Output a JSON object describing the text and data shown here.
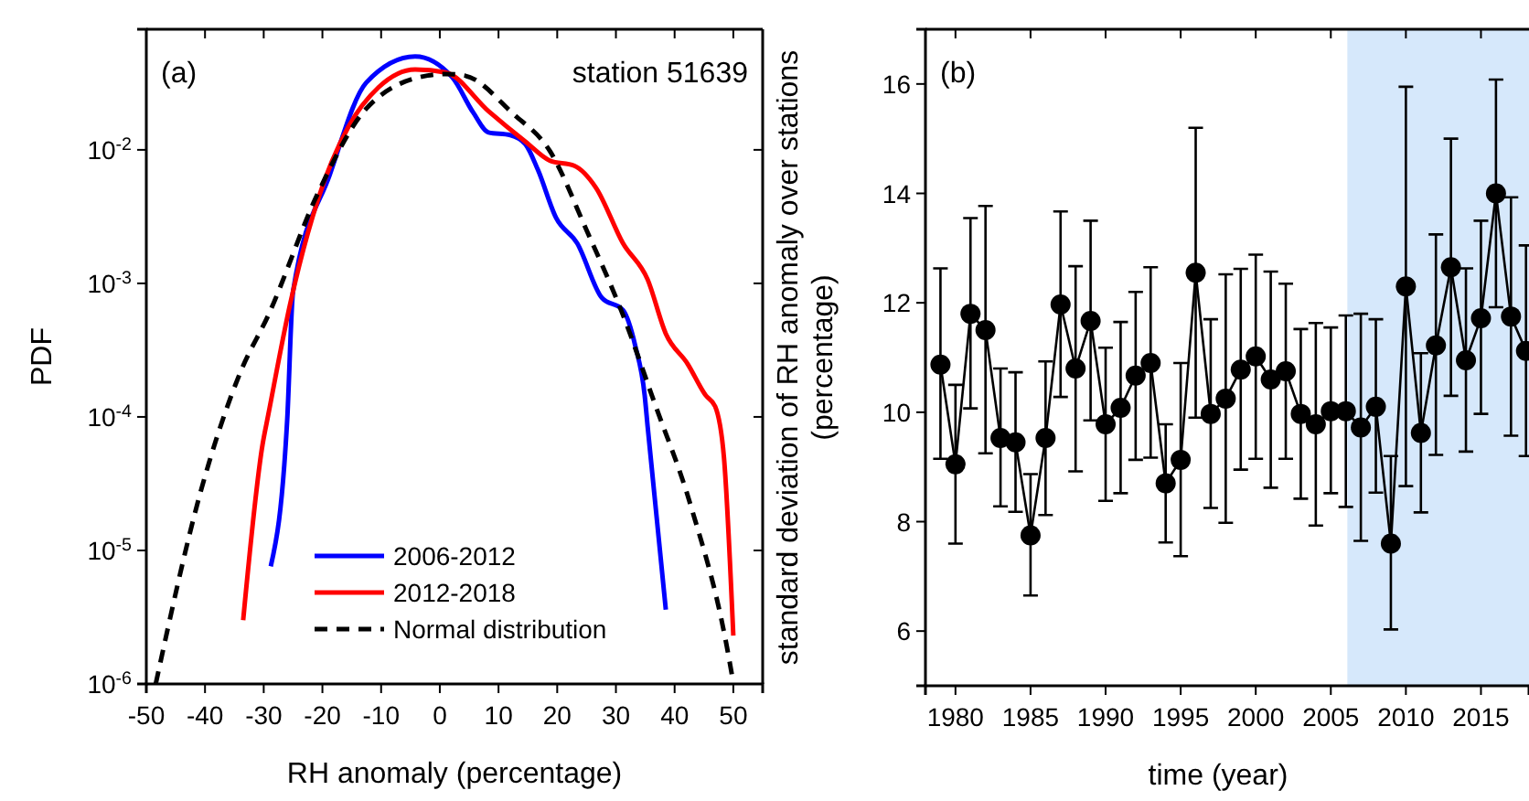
{
  "chart_data": [
    {
      "type": "line",
      "xlabel": "RH anomaly (percentage)",
      "ylabel": "PDF",
      "log": "y",
      "xlim": [
        -50,
        55
      ],
      "xticks": [
        -50,
        -40,
        -30,
        -20,
        -10,
        0,
        10,
        20,
        30,
        40,
        50
      ],
      "ylim": [
        1e-06,
        0.08
      ],
      "yticks": [
        {
          "value": 1e-06,
          "label": "10$^{-6}$"
        },
        {
          "value": 1e-05,
          "label": "10$^{-5}$"
        },
        {
          "value": 0.0001,
          "label": "10$^{-4}$"
        },
        {
          "value": 0.001,
          "label": "10$^{-3}$"
        },
        {
          "value": 0.01,
          "label": "10$^{-2}$"
        }
      ],
      "legend": "bottom",
      "annotations": [
        "(a)",
        "station 51639"
      ],
      "series": [
        {
          "name": "2006-2012",
          "color": "#0000ff",
          "line_style": "solid",
          "x": [
            -28.8,
            -26,
            -25,
            -18.75,
            -12.5,
            -4.2,
            2.1,
            5.7,
            8.3,
            12,
            14.6,
            16.7,
            19.8,
            23.4,
            27.6,
            31.2,
            33.3,
            34.9,
            35.4,
            38.5
          ],
          "values": [
            7.6e-06,
            9.5e-05,
            0.00087,
            0.0065,
            0.032,
            0.05,
            0.035,
            0.019,
            0.0135,
            0.0129,
            0.011,
            0.0071,
            0.0031,
            0.002,
            0.00078,
            0.00063,
            0.00034,
            0.000145,
            8.5e-05,
            3.6e-06
          ]
        },
        {
          "name": "2012-2018",
          "color": "#ff0000",
          "line_style": "solid",
          "x": [
            -33.5,
            -30.2,
            -29.2,
            -25.5,
            -20.8,
            -15.6,
            -10.4,
            -4.2,
            1,
            8.3,
            14.6,
            18.75,
            22.9,
            26.6,
            31.2,
            35.4,
            38.5,
            42.2,
            45.3,
            46.9,
            48.4,
            50
          ],
          "values": [
            3e-06,
            6.2e-05,
            0.000105,
            0.0007,
            0.0042,
            0.0148,
            0.0295,
            0.04,
            0.038,
            0.0195,
            0.0115,
            0.0083,
            0.0076,
            0.0052,
            0.002,
            0.00107,
            0.00042,
            0.00025,
            0.000145,
            0.00012,
            5e-05,
            2.3e-06
          ]
        },
        {
          "name": "Normal distribution",
          "color": "#000000",
          "line_style": "dashed",
          "x": [
            -48.4,
            -40.6,
            -33.9,
            -29.2,
            -20.8,
            -12.5,
            -2.1,
            1,
            4.2,
            12.5,
            18.75,
            25,
            31.2,
            36.5,
            42.7,
            48.9,
            50
          ],
          "values": [
            1e-06,
            2.9e-05,
            0.00022,
            0.00058,
            0.0047,
            0.0204,
            0.036,
            0.037,
            0.036,
            0.0186,
            0.0098,
            0.0025,
            0.00058,
            0.00013,
            2.2e-05,
            1.9e-06,
            1.02e-06
          ]
        }
      ]
    },
    {
      "type": "line",
      "xlabel": "time (year)",
      "ylabel": "standard deviation of RH anomaly over stations (percentage)",
      "xlim": [
        1978,
        2018.2
      ],
      "xticks": [
        1980,
        1985,
        1990,
        1995,
        2000,
        2005,
        2010,
        2015
      ],
      "ylim": [
        5,
        17
      ],
      "yticks": [
        6,
        8,
        10,
        12,
        14,
        16
      ],
      "marker": "circle",
      "line_style": "solid",
      "annotations": [
        "(b)"
      ],
      "bands": [
        {
          "axis": "x",
          "from": 2006.1,
          "to": 2018.2,
          "color": "#d6e8fb"
        }
      ],
      "series": [
        {
          "color": "#000000",
          "x": [
            1979,
            1980,
            1981,
            1982,
            1983,
            1984,
            1985,
            1986,
            1987,
            1988,
            1989,
            1990,
            1991,
            1992,
            1993,
            1994,
            1995,
            1996,
            1997,
            1998,
            1999,
            2000,
            2001,
            2002,
            2003,
            2004,
            2005,
            2006,
            2007,
            2008,
            2009,
            2010,
            2011,
            2012,
            2013,
            2014,
            2015,
            2016,
            2017,
            2018
          ],
          "values": [
            10.87,
            9.05,
            11.8,
            11.5,
            9.53,
            9.45,
            7.75,
            9.53,
            11.97,
            10.8,
            11.67,
            9.78,
            10.08,
            10.67,
            10.9,
            8.7,
            9.13,
            12.55,
            9.97,
            10.25,
            10.78,
            11.02,
            10.6,
            10.75,
            9.97,
            9.78,
            10.02,
            10.02,
            9.72,
            10.1,
            7.6,
            12.3,
            9.62,
            11.22,
            12.65,
            10.95,
            11.72,
            14.0,
            11.75,
            11.12
          ],
          "errors": [
            [
              9.15,
              12.63
            ],
            [
              7.6,
              10.5
            ],
            [
              10.07,
              13.55
            ],
            [
              9.25,
              13.77
            ],
            [
              8.28,
              10.8
            ],
            [
              8.18,
              10.73
            ],
            [
              6.65,
              8.87
            ],
            [
              8.12,
              10.93
            ],
            [
              10.28,
              13.67
            ],
            [
              8.92,
              12.67
            ],
            [
              9.85,
              13.5
            ],
            [
              8.38,
              11.18
            ],
            [
              8.52,
              11.65
            ],
            [
              9.13,
              12.2
            ],
            [
              9.17,
              12.65
            ],
            [
              7.62,
              9.78
            ],
            [
              7.37,
              10.9
            ],
            [
              9.9,
              15.2
            ],
            [
              8.25,
              11.7
            ],
            [
              7.98,
              12.52
            ],
            [
              8.95,
              12.62
            ],
            [
              9.15,
              12.88
            ],
            [
              8.62,
              12.57
            ],
            [
              9.15,
              12.35
            ],
            [
              8.42,
              11.52
            ],
            [
              7.93,
              11.63
            ],
            [
              8.52,
              11.55
            ],
            [
              8.27,
              11.77
            ],
            [
              7.65,
              11.8
            ],
            [
              8.53,
              11.7
            ],
            [
              6.03,
              9.2
            ],
            [
              8.65,
              15.95
            ],
            [
              8.17,
              11.08
            ],
            [
              9.22,
              13.25
            ],
            [
              10.3,
              15.0
            ],
            [
              9.28,
              12.63
            ],
            [
              9.97,
              13.5
            ],
            [
              11.92,
              16.08
            ],
            [
              9.57,
              13.93
            ],
            [
              9.2,
              13.05
            ]
          ]
        }
      ]
    }
  ]
}
